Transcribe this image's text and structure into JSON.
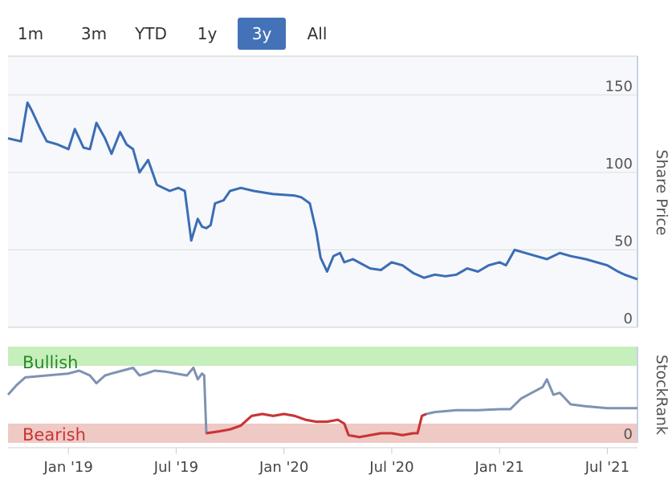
{
  "range_selector": {
    "buttons": [
      {
        "label": "1m",
        "active": false
      },
      {
        "label": "3m",
        "active": false
      },
      {
        "label": "YTD",
        "active": false
      },
      {
        "label": "1y",
        "active": false
      },
      {
        "label": "3y",
        "active": true
      },
      {
        "label": "All",
        "active": false
      }
    ]
  },
  "colors": {
    "price_line": "#3c6db4",
    "rank_line": "#7f92b3",
    "bearish_line": "#cc3333",
    "bullish_band": "#c6efbb",
    "bearish_band": "#efc9c4",
    "bullish_text": "#2a8a2a",
    "bearish_text": "#cc3333",
    "active_button": "#4472b8"
  },
  "chart_data": [
    {
      "type": "line",
      "name": "price",
      "ylabel": "Share Price",
      "ylim": [
        0,
        175
      ],
      "yticks": [
        0,
        50,
        100,
        150
      ],
      "x": [
        2018.72,
        2018.78,
        2018.81,
        2018.83,
        2018.87,
        2018.9,
        2018.95,
        2019.0,
        2019.03,
        2019.07,
        2019.1,
        2019.13,
        2019.17,
        2019.2,
        2019.24,
        2019.27,
        2019.3,
        2019.33,
        2019.37,
        2019.41,
        2019.44,
        2019.47,
        2019.51,
        2019.54,
        2019.57,
        2019.6,
        2019.62,
        2019.64,
        2019.66,
        2019.68,
        2019.72,
        2019.75,
        2019.8,
        2019.86,
        2019.95,
        2020.05,
        2020.08,
        2020.12,
        2020.15,
        2020.17,
        2020.2,
        2020.23,
        2020.26,
        2020.28,
        2020.32,
        2020.36,
        2020.4,
        2020.45,
        2020.5,
        2020.55,
        2020.6,
        2020.65,
        2020.7,
        2020.75,
        2020.8,
        2020.85,
        2020.9,
        2020.95,
        2021.0,
        2021.03,
        2021.07,
        2021.12,
        2021.17,
        2021.22,
        2021.28,
        2021.33,
        2021.4,
        2021.5,
        2021.55,
        2021.58,
        2021.62,
        2021.64
      ],
      "values": [
        122,
        120,
        145,
        140,
        128,
        120,
        118,
        115,
        128,
        116,
        115,
        132,
        122,
        112,
        126,
        118,
        115,
        100,
        108,
        92,
        90,
        88,
        90,
        88,
        56,
        70,
        65,
        64,
        66,
        80,
        82,
        88,
        90,
        88,
        86,
        85,
        84,
        80,
        62,
        45,
        36,
        46,
        48,
        42,
        44,
        41,
        38,
        37,
        42,
        40,
        35,
        32,
        34,
        33,
        34,
        38,
        36,
        40,
        42,
        40,
        50,
        48,
        46,
        44,
        48,
        46,
        44,
        40,
        36,
        34,
        32,
        31
      ],
      "xlim": [
        2018.72,
        2021.64
      ]
    },
    {
      "type": "line",
      "name": "stockrank",
      "ylabel": "StockRank",
      "ylim": [
        0,
        100
      ],
      "yticks": [
        0
      ],
      "bands": [
        {
          "label": "Bullish",
          "from": 80,
          "to": 100
        },
        {
          "label": "Bearish",
          "from": 0,
          "to": 20
        }
      ],
      "x": [
        2018.72,
        2018.76,
        2018.8,
        2018.9,
        2019.0,
        2019.05,
        2019.1,
        2019.13,
        2019.17,
        2019.2,
        2019.25,
        2019.3,
        2019.33,
        2019.36,
        2019.4,
        2019.45,
        2019.5,
        2019.55,
        2019.58,
        2019.6,
        2019.62,
        2019.63,
        2019.64,
        2019.7,
        2019.75,
        2019.8,
        2019.85,
        2019.9,
        2019.95,
        2020.0,
        2020.05,
        2020.1,
        2020.15,
        2020.2,
        2020.25,
        2020.28,
        2020.3,
        2020.35,
        2020.4,
        2020.45,
        2020.5,
        2020.55,
        2020.6,
        2020.62,
        2020.64,
        2020.66,
        2020.7,
        2020.8,
        2020.9,
        2021.0,
        2021.05,
        2021.1,
        2021.15,
        2021.2,
        2021.22,
        2021.25,
        2021.28,
        2021.33,
        2021.4,
        2021.5,
        2021.6,
        2021.64
      ],
      "values": [
        50,
        60,
        68,
        70,
        72,
        75,
        70,
        62,
        70,
        72,
        75,
        78,
        70,
        72,
        75,
        74,
        72,
        70,
        78,
        66,
        72,
        70,
        10,
        12,
        14,
        18,
        28,
        30,
        28,
        30,
        28,
        24,
        22,
        22,
        24,
        20,
        8,
        6,
        8,
        10,
        10,
        8,
        10,
        10,
        28,
        30,
        32,
        34,
        34,
        35,
        35,
        46,
        52,
        58,
        66,
        50,
        52,
        40,
        38,
        36,
        36,
        36
      ],
      "bearish_segment": [
        2019.64,
        2020.66
      ],
      "xlim": [
        2018.72,
        2021.64
      ]
    }
  ],
  "x_axis": {
    "ticks": [
      {
        "label": "Jan '19",
        "t": 2019.0
      },
      {
        "label": "Jul '19",
        "t": 2019.5
      },
      {
        "label": "Jan '20",
        "t": 2020.0
      },
      {
        "label": "Jul '20",
        "t": 2020.5
      },
      {
        "label": "Jan '21",
        "t": 2021.0
      },
      {
        "label": "Jul '21",
        "t": 2021.5
      }
    ]
  }
}
